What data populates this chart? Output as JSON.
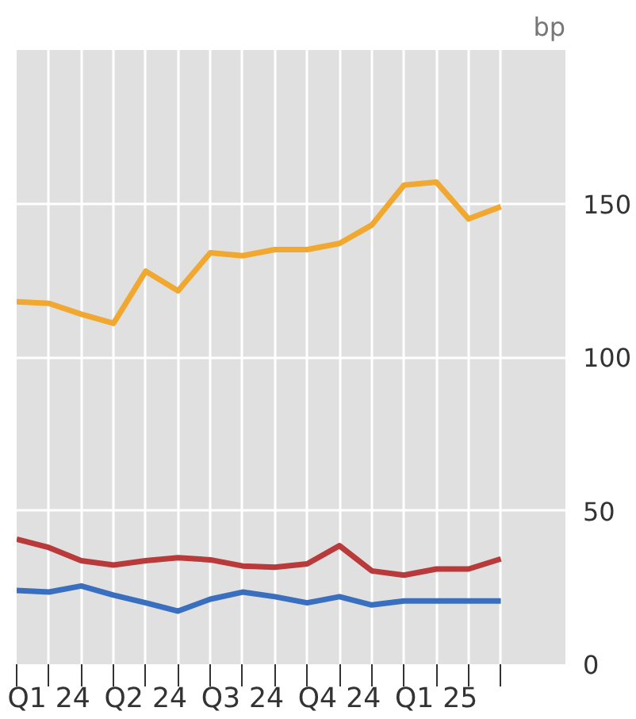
{
  "chart_data": {
    "type": "line",
    "ylabel": "bp",
    "categories": [
      null,
      "Q1 24",
      null,
      null,
      "Q2 24",
      null,
      null,
      "Q3 24",
      null,
      null,
      "Q4 24",
      null,
      null,
      "Q1 25",
      null,
      null
    ],
    "series": [
      {
        "color": "#f0a830",
        "values": [
          118,
          117.5,
          114,
          111,
          128,
          121.6,
          134,
          133,
          135,
          135,
          137,
          143,
          156,
          157,
          145,
          149
        ]
      },
      {
        "color": "#b83a3a",
        "values": [
          40.7,
          38,
          33.7,
          32.3,
          33.7,
          34.7,
          34,
          32,
          31.6,
          32.7,
          38.6,
          30.4,
          29,
          31,
          31,
          34.3
        ]
      },
      {
        "color": "#3a6fc0",
        "values": [
          24,
          23.5,
          25.5,
          22.5,
          20,
          17.3,
          21.2,
          23.5,
          22,
          20,
          22,
          19.3,
          20.6,
          20.6,
          20.6,
          20.6
        ]
      }
    ],
    "ylim": [
      0,
      200
    ],
    "yticks": [
      0,
      50,
      100,
      150
    ],
    "grid": true,
    "marker": "none",
    "line_style": "solid"
  }
}
